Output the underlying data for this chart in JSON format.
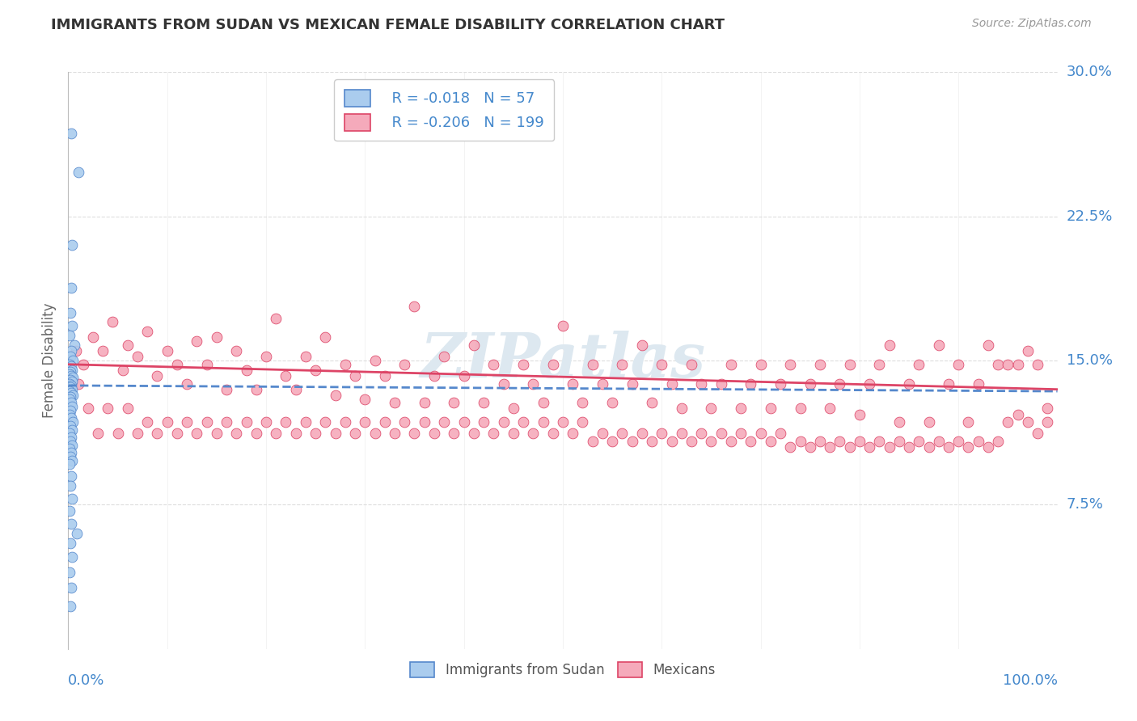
{
  "title": "IMMIGRANTS FROM SUDAN VS MEXICAN FEMALE DISABILITY CORRELATION CHART",
  "source": "Source: ZipAtlas.com",
  "ylabel": "Female Disability",
  "legend_bottom": [
    "Immigrants from Sudan",
    "Mexicans"
  ],
  "sudan_R": -0.018,
  "sudan_N": 57,
  "mexican_R": -0.206,
  "mexican_N": 199,
  "xlim": [
    0.0,
    1.0
  ],
  "ylim": [
    0.0,
    0.3
  ],
  "yticks": [
    0.075,
    0.15,
    0.225,
    0.3
  ],
  "ytick_labels": [
    "7.5%",
    "15.0%",
    "22.5%",
    "30.0%"
  ],
  "xtick_labels": [
    "0.0%",
    "100.0%"
  ],
  "background_color": "#ffffff",
  "sudan_color": "#aaccee",
  "mexican_color": "#f5aabb",
  "sudan_line_color": "#5588cc",
  "mexican_line_color": "#dd4466",
  "grid_color": "#dddddd",
  "title_color": "#333333",
  "label_color": "#4488cc",
  "watermark": "ZIPatlas",
  "watermark_color": "#dde8f0",
  "sudan_points": [
    [
      0.003,
      0.268
    ],
    [
      0.01,
      0.248
    ],
    [
      0.004,
      0.21
    ],
    [
      0.003,
      0.188
    ],
    [
      0.002,
      0.175
    ],
    [
      0.004,
      0.168
    ],
    [
      0.001,
      0.163
    ],
    [
      0.006,
      0.158
    ],
    [
      0.003,
      0.155
    ],
    [
      0.002,
      0.152
    ],
    [
      0.005,
      0.15
    ],
    [
      0.001,
      0.148
    ],
    [
      0.003,
      0.147
    ],
    [
      0.004,
      0.145
    ],
    [
      0.002,
      0.144
    ],
    [
      0.001,
      0.143
    ],
    [
      0.003,
      0.142
    ],
    [
      0.005,
      0.141
    ],
    [
      0.002,
      0.14
    ],
    [
      0.004,
      0.139
    ],
    [
      0.001,
      0.138
    ],
    [
      0.003,
      0.137
    ],
    [
      0.002,
      0.136
    ],
    [
      0.004,
      0.135
    ],
    [
      0.001,
      0.134
    ],
    [
      0.003,
      0.133
    ],
    [
      0.005,
      0.132
    ],
    [
      0.002,
      0.131
    ],
    [
      0.001,
      0.13
    ],
    [
      0.003,
      0.128
    ],
    [
      0.004,
      0.126
    ],
    [
      0.002,
      0.124
    ],
    [
      0.001,
      0.122
    ],
    [
      0.003,
      0.12
    ],
    [
      0.005,
      0.118
    ],
    [
      0.002,
      0.116
    ],
    [
      0.004,
      0.114
    ],
    [
      0.001,
      0.112
    ],
    [
      0.003,
      0.11
    ],
    [
      0.002,
      0.108
    ],
    [
      0.004,
      0.106
    ],
    [
      0.001,
      0.104
    ],
    [
      0.003,
      0.102
    ],
    [
      0.002,
      0.1
    ],
    [
      0.004,
      0.098
    ],
    [
      0.001,
      0.096
    ],
    [
      0.003,
      0.09
    ],
    [
      0.002,
      0.085
    ],
    [
      0.004,
      0.078
    ],
    [
      0.001,
      0.072
    ],
    [
      0.003,
      0.065
    ],
    [
      0.009,
      0.06
    ],
    [
      0.002,
      0.055
    ],
    [
      0.004,
      0.048
    ],
    [
      0.001,
      0.04
    ],
    [
      0.003,
      0.032
    ],
    [
      0.002,
      0.022
    ]
  ],
  "mexican_points": [
    [
      0.008,
      0.155
    ],
    [
      0.015,
      0.148
    ],
    [
      0.025,
      0.162
    ],
    [
      0.035,
      0.155
    ],
    [
      0.045,
      0.17
    ],
    [
      0.055,
      0.145
    ],
    [
      0.06,
      0.158
    ],
    [
      0.07,
      0.152
    ],
    [
      0.08,
      0.165
    ],
    [
      0.09,
      0.142
    ],
    [
      0.1,
      0.155
    ],
    [
      0.11,
      0.148
    ],
    [
      0.12,
      0.138
    ],
    [
      0.13,
      0.16
    ],
    [
      0.14,
      0.148
    ],
    [
      0.15,
      0.162
    ],
    [
      0.16,
      0.135
    ],
    [
      0.17,
      0.155
    ],
    [
      0.18,
      0.145
    ],
    [
      0.19,
      0.135
    ],
    [
      0.2,
      0.152
    ],
    [
      0.21,
      0.172
    ],
    [
      0.22,
      0.142
    ],
    [
      0.23,
      0.135
    ],
    [
      0.24,
      0.152
    ],
    [
      0.25,
      0.145
    ],
    [
      0.26,
      0.162
    ],
    [
      0.27,
      0.132
    ],
    [
      0.28,
      0.148
    ],
    [
      0.29,
      0.142
    ],
    [
      0.3,
      0.13
    ],
    [
      0.31,
      0.15
    ],
    [
      0.32,
      0.142
    ],
    [
      0.33,
      0.128
    ],
    [
      0.34,
      0.148
    ],
    [
      0.35,
      0.178
    ],
    [
      0.36,
      0.128
    ],
    [
      0.37,
      0.142
    ],
    [
      0.38,
      0.152
    ],
    [
      0.39,
      0.128
    ],
    [
      0.4,
      0.142
    ],
    [
      0.41,
      0.158
    ],
    [
      0.42,
      0.128
    ],
    [
      0.43,
      0.148
    ],
    [
      0.44,
      0.138
    ],
    [
      0.45,
      0.125
    ],
    [
      0.46,
      0.148
    ],
    [
      0.47,
      0.138
    ],
    [
      0.48,
      0.128
    ],
    [
      0.49,
      0.148
    ],
    [
      0.5,
      0.168
    ],
    [
      0.51,
      0.138
    ],
    [
      0.52,
      0.128
    ],
    [
      0.53,
      0.148
    ],
    [
      0.54,
      0.138
    ],
    [
      0.55,
      0.128
    ],
    [
      0.56,
      0.148
    ],
    [
      0.57,
      0.138
    ],
    [
      0.58,
      0.158
    ],
    [
      0.59,
      0.128
    ],
    [
      0.6,
      0.148
    ],
    [
      0.61,
      0.138
    ],
    [
      0.62,
      0.125
    ],
    [
      0.63,
      0.148
    ],
    [
      0.64,
      0.138
    ],
    [
      0.65,
      0.125
    ],
    [
      0.66,
      0.138
    ],
    [
      0.67,
      0.148
    ],
    [
      0.68,
      0.125
    ],
    [
      0.69,
      0.138
    ],
    [
      0.7,
      0.148
    ],
    [
      0.71,
      0.125
    ],
    [
      0.72,
      0.138
    ],
    [
      0.73,
      0.148
    ],
    [
      0.74,
      0.125
    ],
    [
      0.75,
      0.138
    ],
    [
      0.76,
      0.148
    ],
    [
      0.77,
      0.125
    ],
    [
      0.78,
      0.138
    ],
    [
      0.79,
      0.148
    ],
    [
      0.8,
      0.122
    ],
    [
      0.81,
      0.138
    ],
    [
      0.82,
      0.148
    ],
    [
      0.83,
      0.158
    ],
    [
      0.84,
      0.118
    ],
    [
      0.85,
      0.138
    ],
    [
      0.86,
      0.148
    ],
    [
      0.87,
      0.118
    ],
    [
      0.88,
      0.158
    ],
    [
      0.89,
      0.138
    ],
    [
      0.9,
      0.148
    ],
    [
      0.91,
      0.118
    ],
    [
      0.92,
      0.138
    ],
    [
      0.93,
      0.158
    ],
    [
      0.94,
      0.148
    ],
    [
      0.95,
      0.118
    ],
    [
      0.96,
      0.148
    ],
    [
      0.97,
      0.155
    ],
    [
      0.98,
      0.148
    ],
    [
      0.99,
      0.118
    ],
    [
      0.01,
      0.138
    ],
    [
      0.02,
      0.125
    ],
    [
      0.03,
      0.112
    ],
    [
      0.04,
      0.125
    ],
    [
      0.05,
      0.112
    ],
    [
      0.06,
      0.125
    ],
    [
      0.07,
      0.112
    ],
    [
      0.08,
      0.118
    ],
    [
      0.09,
      0.112
    ],
    [
      0.1,
      0.118
    ],
    [
      0.11,
      0.112
    ],
    [
      0.12,
      0.118
    ],
    [
      0.13,
      0.112
    ],
    [
      0.14,
      0.118
    ],
    [
      0.15,
      0.112
    ],
    [
      0.16,
      0.118
    ],
    [
      0.17,
      0.112
    ],
    [
      0.18,
      0.118
    ],
    [
      0.19,
      0.112
    ],
    [
      0.2,
      0.118
    ],
    [
      0.21,
      0.112
    ],
    [
      0.22,
      0.118
    ],
    [
      0.23,
      0.112
    ],
    [
      0.24,
      0.118
    ],
    [
      0.25,
      0.112
    ],
    [
      0.26,
      0.118
    ],
    [
      0.27,
      0.112
    ],
    [
      0.28,
      0.118
    ],
    [
      0.29,
      0.112
    ],
    [
      0.3,
      0.118
    ],
    [
      0.31,
      0.112
    ],
    [
      0.32,
      0.118
    ],
    [
      0.33,
      0.112
    ],
    [
      0.34,
      0.118
    ],
    [
      0.35,
      0.112
    ],
    [
      0.36,
      0.118
    ],
    [
      0.37,
      0.112
    ],
    [
      0.38,
      0.118
    ],
    [
      0.39,
      0.112
    ],
    [
      0.4,
      0.118
    ],
    [
      0.41,
      0.112
    ],
    [
      0.42,
      0.118
    ],
    [
      0.43,
      0.112
    ],
    [
      0.44,
      0.118
    ],
    [
      0.45,
      0.112
    ],
    [
      0.46,
      0.118
    ],
    [
      0.47,
      0.112
    ],
    [
      0.48,
      0.118
    ],
    [
      0.49,
      0.112
    ],
    [
      0.5,
      0.118
    ],
    [
      0.51,
      0.112
    ],
    [
      0.52,
      0.118
    ],
    [
      0.53,
      0.108
    ],
    [
      0.54,
      0.112
    ],
    [
      0.55,
      0.108
    ],
    [
      0.56,
      0.112
    ],
    [
      0.57,
      0.108
    ],
    [
      0.58,
      0.112
    ],
    [
      0.59,
      0.108
    ],
    [
      0.6,
      0.112
    ],
    [
      0.61,
      0.108
    ],
    [
      0.62,
      0.112
    ],
    [
      0.63,
      0.108
    ],
    [
      0.64,
      0.112
    ],
    [
      0.65,
      0.108
    ],
    [
      0.66,
      0.112
    ],
    [
      0.67,
      0.108
    ],
    [
      0.68,
      0.112
    ],
    [
      0.69,
      0.108
    ],
    [
      0.7,
      0.112
    ],
    [
      0.71,
      0.108
    ],
    [
      0.72,
      0.112
    ],
    [
      0.73,
      0.105
    ],
    [
      0.74,
      0.108
    ],
    [
      0.75,
      0.105
    ],
    [
      0.76,
      0.108
    ],
    [
      0.77,
      0.105
    ],
    [
      0.78,
      0.108
    ],
    [
      0.79,
      0.105
    ],
    [
      0.8,
      0.108
    ],
    [
      0.81,
      0.105
    ],
    [
      0.82,
      0.108
    ],
    [
      0.83,
      0.105
    ],
    [
      0.84,
      0.108
    ],
    [
      0.85,
      0.105
    ],
    [
      0.86,
      0.108
    ],
    [
      0.87,
      0.105
    ],
    [
      0.88,
      0.108
    ],
    [
      0.89,
      0.105
    ],
    [
      0.9,
      0.108
    ],
    [
      0.91,
      0.105
    ],
    [
      0.92,
      0.108
    ],
    [
      0.93,
      0.105
    ],
    [
      0.94,
      0.108
    ],
    [
      0.95,
      0.148
    ],
    [
      0.96,
      0.122
    ],
    [
      0.97,
      0.118
    ],
    [
      0.98,
      0.112
    ],
    [
      0.99,
      0.125
    ]
  ],
  "sudan_regr": [
    0.0,
    0.137,
    1.0,
    0.134
  ],
  "mexican_regr": [
    0.0,
    0.148,
    1.0,
    0.135
  ]
}
